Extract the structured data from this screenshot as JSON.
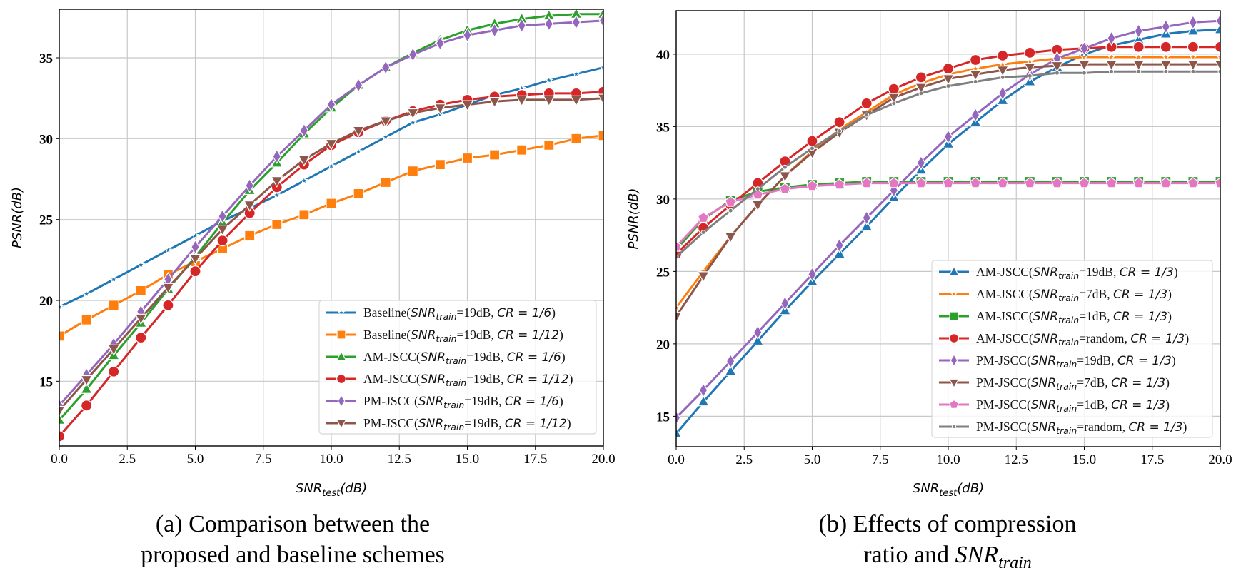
{
  "chart_data": [
    {
      "type": "line",
      "caption_lines": [
        "(a) Comparison between the",
        "proposed and baseline schemes"
      ],
      "xlabel": {
        "main": "SNR",
        "sub": "test",
        "tail": "(dB)"
      },
      "ylabel": "PSNR(dB)",
      "xlim": [
        0,
        20
      ],
      "ylim": [
        11.0,
        38.0
      ],
      "xticks": [
        0,
        2.5,
        5,
        7.5,
        10,
        12.5,
        15,
        17.5,
        20
      ],
      "xtick_labels": [
        "0.0",
        "2.5",
        "5.0",
        "7.5",
        "10.0",
        "12.5",
        "15.0",
        "17.5",
        "20.0"
      ],
      "yticks": [
        15,
        20,
        25,
        30,
        35
      ],
      "ytick_labels": [
        "15",
        "20",
        "25",
        "30",
        "35"
      ],
      "grid": true,
      "legend_position": "lower-right",
      "x": [
        0,
        1,
        2,
        3,
        4,
        5,
        6,
        7,
        8,
        9,
        10,
        11,
        12,
        13,
        14,
        15,
        16,
        17,
        18,
        19,
        20
      ],
      "series": [
        {
          "name": "Baseline(SNR_train=19dB, CR = 1/6)",
          "scheme": "Baseline",
          "snr_train": "19dB",
          "cr": "1/6",
          "color": "#1f77b4",
          "marker": "star",
          "values": [
            19.6,
            20.4,
            21.3,
            22.2,
            23.1,
            24.0,
            24.9,
            25.7,
            26.5,
            27.4,
            28.3,
            29.2,
            30.1,
            31.0,
            31.5,
            32.1,
            32.7,
            33.1,
            33.6,
            34.0,
            34.4
          ]
        },
        {
          "name": "Baseline(SNR_train=19dB, CR = 1/12)",
          "scheme": "Baseline",
          "snr_train": "19dB",
          "cr": "1/12",
          "color": "#ff7f0e",
          "marker": "square",
          "values": [
            17.8,
            18.8,
            19.7,
            20.6,
            21.6,
            22.4,
            23.2,
            24.0,
            24.7,
            25.3,
            26.0,
            26.6,
            27.3,
            28.0,
            28.4,
            28.8,
            29.0,
            29.3,
            29.6,
            30.0,
            30.2
          ]
        },
        {
          "name": "AM-JSCC(SNR_train=19dB, CR = 1/6)",
          "scheme": "AM-JSCC",
          "snr_train": "19dB",
          "cr": "1/6",
          "color": "#2ca02c",
          "marker": "triangle-up",
          "values": [
            12.6,
            14.5,
            16.6,
            18.6,
            20.7,
            22.7,
            24.8,
            26.8,
            28.5,
            30.3,
            31.9,
            33.3,
            34.4,
            35.3,
            36.1,
            36.7,
            37.1,
            37.4,
            37.6,
            37.7,
            37.7
          ]
        },
        {
          "name": "AM-JSCC(SNR_train=19dB, CR = 1/12)",
          "scheme": "AM-JSCC",
          "snr_train": "19dB",
          "cr": "1/12",
          "color": "#d62728",
          "marker": "circle",
          "values": [
            11.6,
            13.5,
            15.6,
            17.7,
            19.7,
            21.8,
            23.7,
            25.4,
            27.0,
            28.4,
            29.6,
            30.4,
            31.1,
            31.7,
            32.1,
            32.4,
            32.6,
            32.7,
            32.8,
            32.8,
            32.9
          ]
        },
        {
          "name": "PM-JSCC(SNR_train=19dB, CR = 1/6)",
          "scheme": "PM-JSCC",
          "snr_train": "19dB",
          "cr": "1/6",
          "color": "#9467bd",
          "marker": "diamond",
          "values": [
            13.5,
            15.4,
            17.3,
            19.3,
            21.3,
            23.3,
            25.2,
            27.1,
            28.9,
            30.5,
            32.1,
            33.3,
            34.4,
            35.2,
            35.9,
            36.4,
            36.7,
            37.0,
            37.1,
            37.2,
            37.3
          ]
        },
        {
          "name": "PM-JSCC(SNR_train=19dB, CR = 1/12)",
          "scheme": "PM-JSCC",
          "snr_train": "19dB",
          "cr": "1/12",
          "color": "#8c564b",
          "marker": "triangle-down",
          "values": [
            13.2,
            15.1,
            17.0,
            18.9,
            20.8,
            22.6,
            24.4,
            25.9,
            27.4,
            28.7,
            29.7,
            30.5,
            31.1,
            31.6,
            31.9,
            32.1,
            32.3,
            32.4,
            32.4,
            32.4,
            32.5
          ]
        }
      ]
    },
    {
      "type": "line",
      "caption_lines": [
        "(b) Effects of compression",
        "ratio and "
      ],
      "caption_math": {
        "main": "SNR",
        "sub": "train"
      },
      "xlabel": {
        "main": "SNR",
        "sub": "test",
        "tail": "(dB)"
      },
      "ylabel": "PSNR(dB)",
      "xlim": [
        0,
        20
      ],
      "ylim": [
        12.9,
        43.0
      ],
      "xticks": [
        0,
        2.5,
        5,
        7.5,
        10,
        12.5,
        15,
        17.5,
        20
      ],
      "xtick_labels": [
        "0.0",
        "2.5",
        "5.0",
        "7.5",
        "10.0",
        "12.5",
        "15.0",
        "17.5",
        "20.0"
      ],
      "yticks": [
        15,
        20,
        25,
        30,
        35,
        40
      ],
      "ytick_labels": [
        "15",
        "20",
        "25",
        "30",
        "35",
        "40"
      ],
      "grid": true,
      "legend_position": "lower-right",
      "x": [
        0,
        1,
        2,
        3,
        4,
        5,
        6,
        7,
        8,
        9,
        10,
        11,
        12,
        13,
        14,
        15,
        16,
        17,
        18,
        19,
        20
      ],
      "series": [
        {
          "name": "AM-JSCC(SNR_train=19dB, CR = 1/3)",
          "scheme": "AM-JSCC",
          "snr_train": "19dB",
          "cr": "1/3",
          "color": "#1f77b4",
          "marker": "triangle-up",
          "values": [
            13.8,
            16.0,
            18.1,
            20.2,
            22.3,
            24.3,
            26.2,
            28.1,
            30.1,
            32.0,
            33.8,
            35.3,
            36.8,
            38.1,
            39.1,
            40.0,
            40.6,
            41.0,
            41.4,
            41.6,
            41.7
          ]
        },
        {
          "name": "AM-JSCC(SNR_train=7dB, CR = 1/3)",
          "scheme": "AM-JSCC",
          "snr_train": "7dB",
          "cr": "1/3",
          "color": "#ff7f0e",
          "marker": "star",
          "values": [
            22.5,
            25.0,
            27.4,
            29.6,
            31.6,
            33.3,
            34.8,
            36.0,
            37.2,
            38.0,
            38.6,
            39.0,
            39.3,
            39.5,
            39.7,
            39.8,
            39.8,
            39.8,
            39.8,
            39.8,
            39.8
          ]
        },
        {
          "name": "AM-JSCC(SNR_train=1dB, CR = 1/3)",
          "scheme": "AM-JSCC",
          "snr_train": "1dB",
          "cr": "1/3",
          "color": "#2ca02c",
          "marker": "square",
          "values": [
            26.5,
            28.6,
            29.9,
            30.5,
            30.8,
            31.0,
            31.1,
            31.2,
            31.2,
            31.2,
            31.2,
            31.2,
            31.2,
            31.2,
            31.2,
            31.2,
            31.2,
            31.2,
            31.2,
            31.2,
            31.2
          ]
        },
        {
          "name": "AM-JSCC(SNR_train=random, CR = 1/3)",
          "scheme": "AM-JSCC",
          "snr_train": "random",
          "cr": "1/3",
          "color": "#d62728",
          "marker": "circle",
          "values": [
            26.2,
            28.0,
            29.6,
            31.1,
            32.6,
            34.0,
            35.3,
            36.6,
            37.6,
            38.4,
            39.0,
            39.6,
            39.9,
            40.1,
            40.3,
            40.4,
            40.5,
            40.5,
            40.5,
            40.5,
            40.5
          ]
        },
        {
          "name": "PM-JSCC(SNR_train=19dB, CR = 1/3)",
          "scheme": "PM-JSCC",
          "snr_train": "19dB",
          "cr": "1/3",
          "color": "#9467bd",
          "marker": "diamond",
          "values": [
            14.9,
            16.8,
            18.8,
            20.8,
            22.8,
            24.8,
            26.8,
            28.7,
            30.6,
            32.5,
            34.3,
            35.8,
            37.3,
            38.6,
            39.7,
            40.4,
            41.1,
            41.6,
            41.9,
            42.2,
            42.3
          ]
        },
        {
          "name": "PM-JSCC(SNR_train=7dB, CR = 1/3)",
          "scheme": "PM-JSCC",
          "snr_train": "7dB",
          "cr": "1/3",
          "color": "#8c564b",
          "marker": "triangle-down",
          "values": [
            21.9,
            24.7,
            27.4,
            29.6,
            31.6,
            33.2,
            34.6,
            35.8,
            37.0,
            37.7,
            38.3,
            38.6,
            38.9,
            39.1,
            39.2,
            39.3,
            39.3,
            39.3,
            39.3,
            39.3,
            39.3
          ]
        },
        {
          "name": "PM-JSCC(SNR_train=1dB, CR = 1/3)",
          "scheme": "PM-JSCC",
          "snr_train": "1dB",
          "cr": "1/3",
          "color": "#e377c2",
          "marker": "pentagon",
          "values": [
            26.7,
            28.7,
            29.8,
            30.3,
            30.7,
            30.9,
            31.0,
            31.1,
            31.1,
            31.1,
            31.1,
            31.1,
            31.1,
            31.1,
            31.1,
            31.1,
            31.1,
            31.1,
            31.1,
            31.1,
            31.1
          ]
        },
        {
          "name": "PM-JSCC(SNR_train=random, CR = 1/3)",
          "scheme": "PM-JSCC",
          "snr_train": "random",
          "cr": "1/3",
          "color": "#7f7f7f",
          "marker": "point",
          "values": [
            26.0,
            27.7,
            29.2,
            30.7,
            32.2,
            33.5,
            34.7,
            35.8,
            36.6,
            37.3,
            37.8,
            38.1,
            38.4,
            38.5,
            38.7,
            38.7,
            38.8,
            38.8,
            38.8,
            38.8,
            38.8
          ]
        }
      ]
    }
  ]
}
